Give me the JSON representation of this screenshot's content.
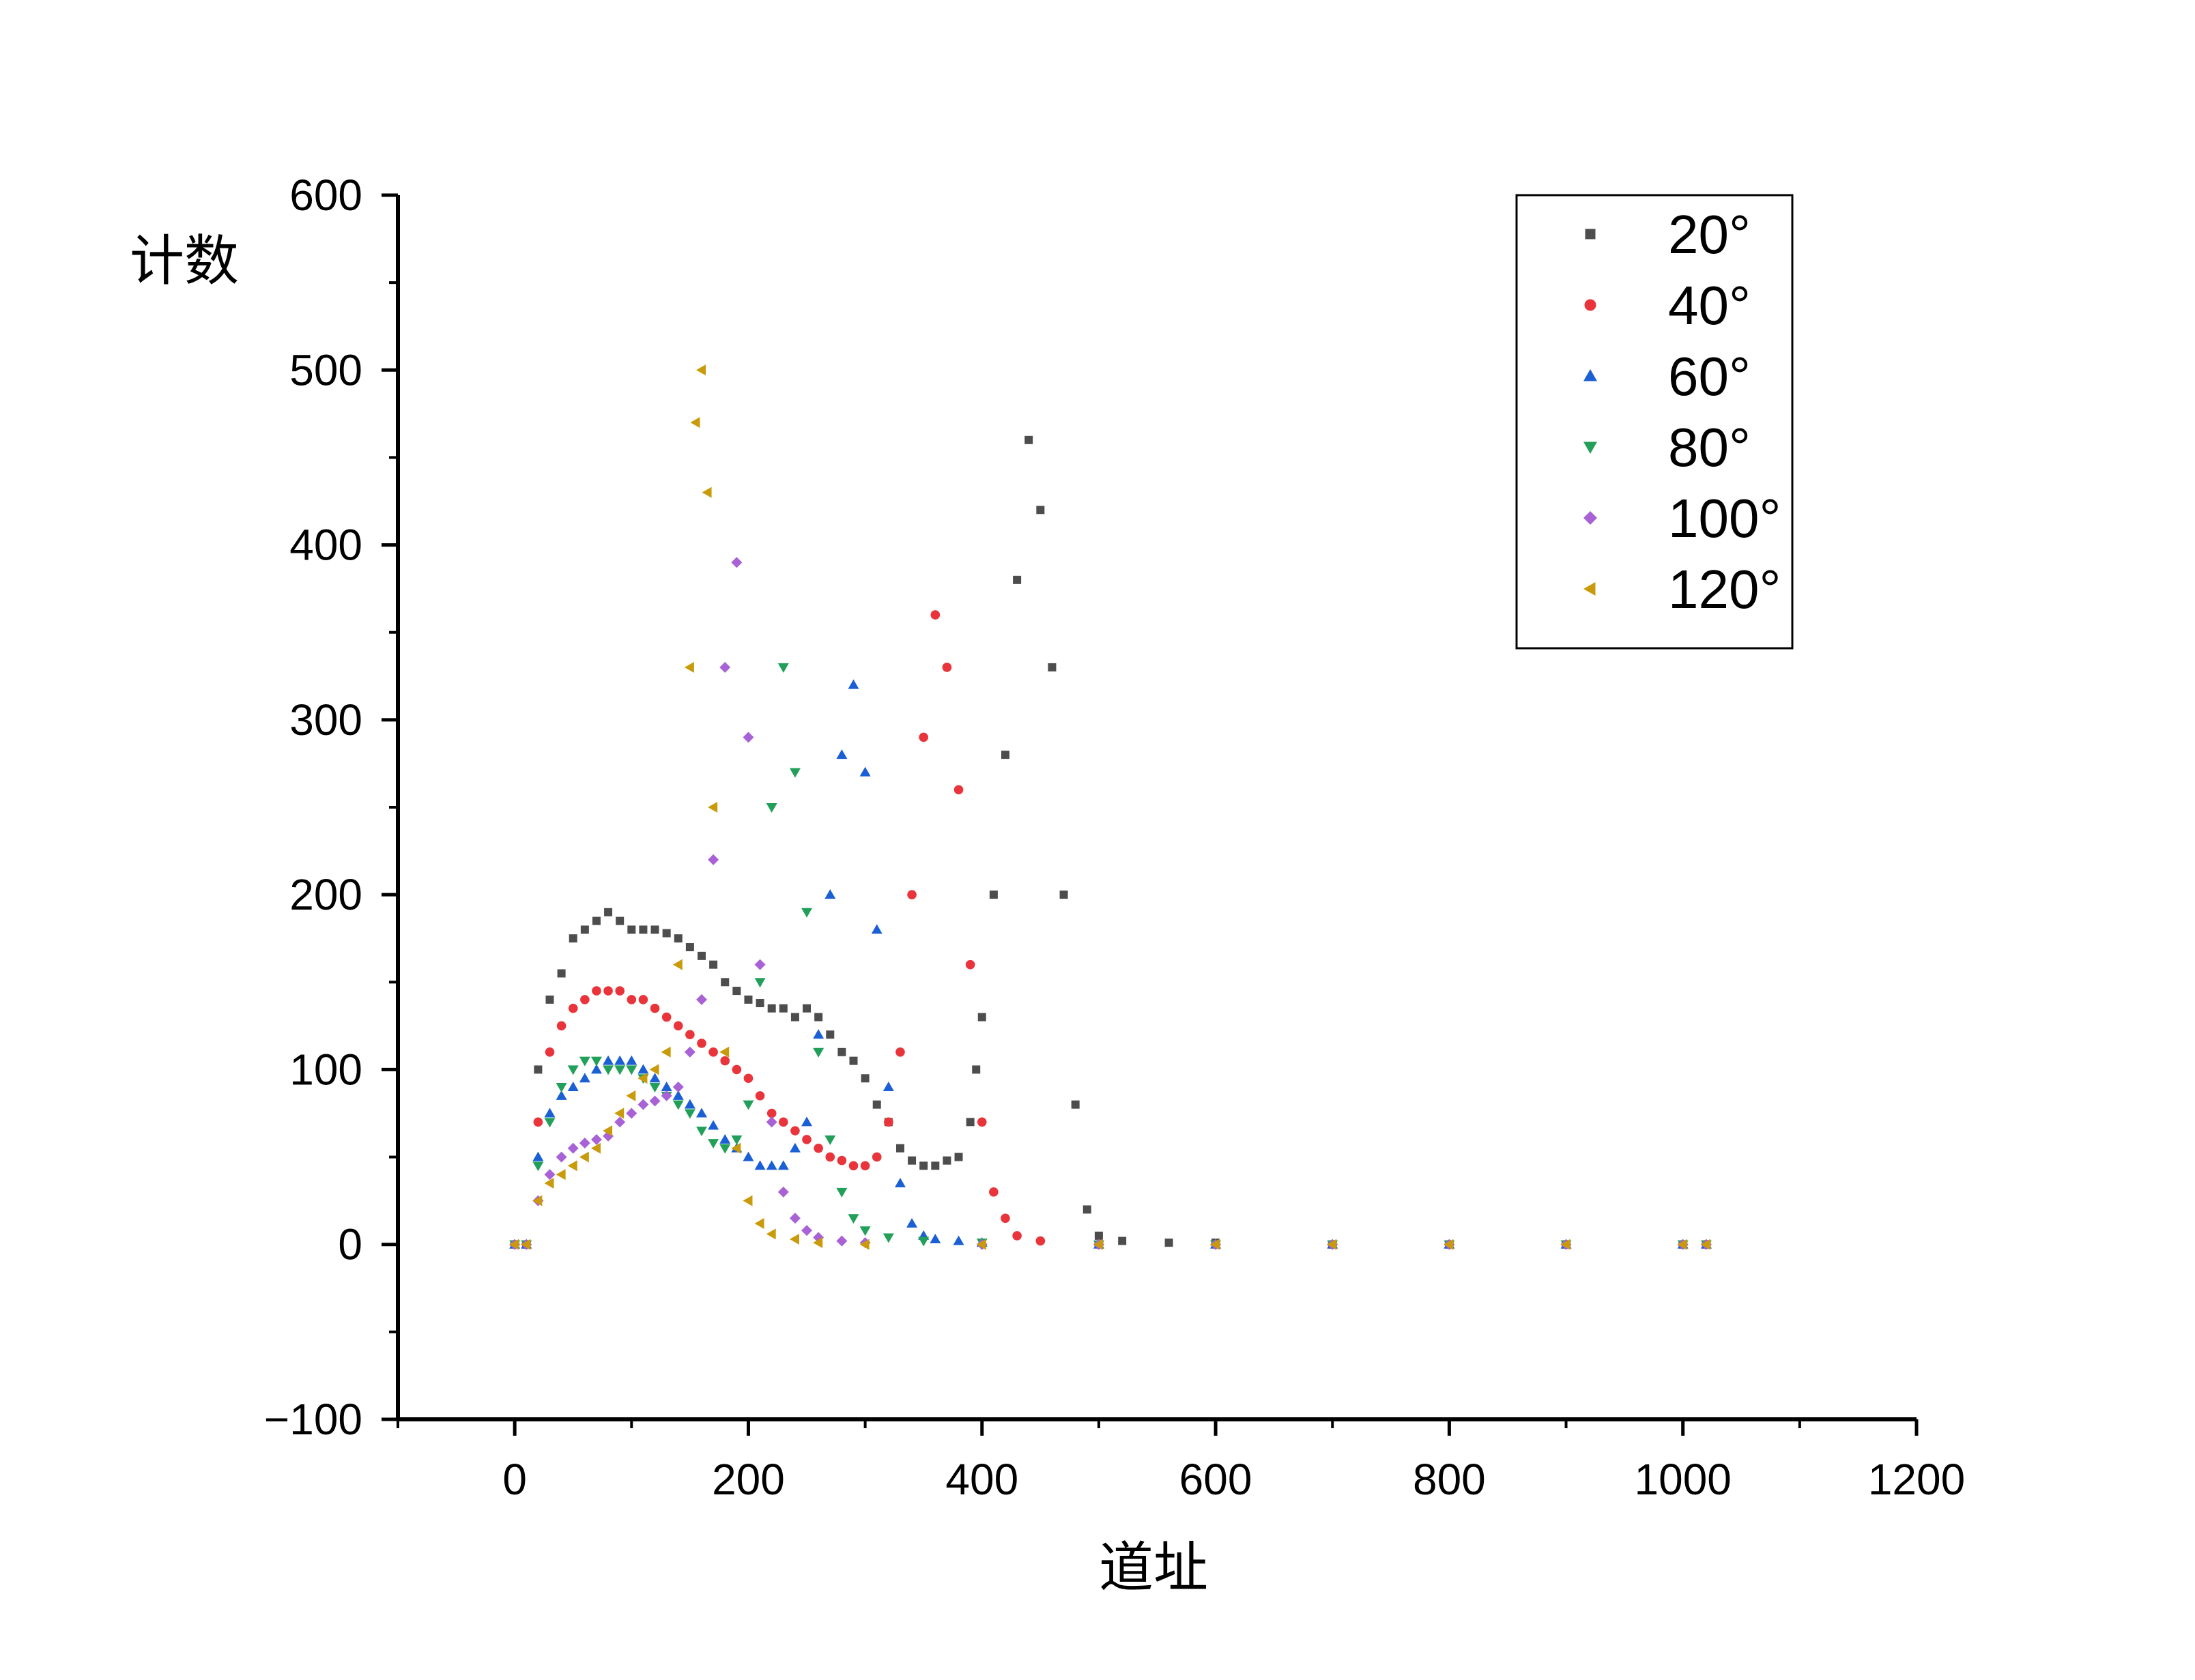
{
  "chart_data": {
    "type": "scatter",
    "xlabel": "道址",
    "ylabel": "计数",
    "xlim": [
      -100,
      1200
    ],
    "ylim": [
      -100,
      600
    ],
    "x_ticks": [
      0,
      200,
      400,
      600,
      800,
      1000,
      1200
    ],
    "x_tick_labels": [
      "0",
      "200",
      "400",
      "600",
      "800",
      "1000",
      "1200"
    ],
    "y_ticks": [
      -100,
      0,
      100,
      200,
      300,
      400,
      500,
      600
    ],
    "y_tick_labels": [
      "−100",
      "0",
      "100",
      "200",
      "300",
      "400",
      "500",
      "600"
    ],
    "grid": false,
    "legend_position": "top-right",
    "series": [
      {
        "name": "20°",
        "marker": "square",
        "color": "#4d4d4d",
        "points": [
          [
            0,
            0
          ],
          [
            10,
            0
          ],
          [
            20,
            100
          ],
          [
            30,
            140
          ],
          [
            40,
            155
          ],
          [
            50,
            175
          ],
          [
            60,
            180
          ],
          [
            70,
            185
          ],
          [
            80,
            190
          ],
          [
            90,
            185
          ],
          [
            100,
            180
          ],
          [
            110,
            180
          ],
          [
            120,
            180
          ],
          [
            130,
            178
          ],
          [
            140,
            175
          ],
          [
            150,
            170
          ],
          [
            160,
            165
          ],
          [
            170,
            160
          ],
          [
            180,
            150
          ],
          [
            190,
            145
          ],
          [
            200,
            140
          ],
          [
            210,
            138
          ],
          [
            220,
            135
          ],
          [
            230,
            135
          ],
          [
            240,
            130
          ],
          [
            250,
            135
          ],
          [
            260,
            130
          ],
          [
            270,
            120
          ],
          [
            280,
            110
          ],
          [
            290,
            105
          ],
          [
            300,
            95
          ],
          [
            310,
            80
          ],
          [
            320,
            70
          ],
          [
            330,
            55
          ],
          [
            340,
            48
          ],
          [
            350,
            45
          ],
          [
            360,
            45
          ],
          [
            370,
            48
          ],
          [
            380,
            50
          ],
          [
            390,
            70
          ],
          [
            395,
            100
          ],
          [
            400,
            130
          ],
          [
            410,
            200
          ],
          [
            420,
            280
          ],
          [
            430,
            380
          ],
          [
            440,
            460
          ],
          [
            450,
            420
          ],
          [
            460,
            330
          ],
          [
            470,
            200
          ],
          [
            480,
            80
          ],
          [
            490,
            20
          ],
          [
            500,
            5
          ],
          [
            520,
            2
          ],
          [
            560,
            1
          ],
          [
            600,
            1
          ],
          [
            700,
            0
          ],
          [
            800,
            0
          ],
          [
            900,
            0
          ],
          [
            1000,
            0
          ],
          [
            1020,
            0
          ]
        ]
      },
      {
        "name": "40°",
        "marker": "circle",
        "color": "#e8343a",
        "points": [
          [
            0,
            0
          ],
          [
            10,
            0
          ],
          [
            20,
            70
          ],
          [
            30,
            110
          ],
          [
            40,
            125
          ],
          [
            50,
            135
          ],
          [
            60,
            140
          ],
          [
            70,
            145
          ],
          [
            80,
            145
          ],
          [
            90,
            145
          ],
          [
            100,
            140
          ],
          [
            110,
            140
          ],
          [
            120,
            135
          ],
          [
            130,
            130
          ],
          [
            140,
            125
          ],
          [
            150,
            120
          ],
          [
            160,
            115
          ],
          [
            170,
            110
          ],
          [
            180,
            105
          ],
          [
            190,
            100
          ],
          [
            200,
            95
          ],
          [
            210,
            85
          ],
          [
            220,
            75
          ],
          [
            230,
            70
          ],
          [
            240,
            65
          ],
          [
            250,
            60
          ],
          [
            260,
            55
          ],
          [
            270,
            50
          ],
          [
            280,
            48
          ],
          [
            290,
            45
          ],
          [
            300,
            45
          ],
          [
            310,
            50
          ],
          [
            320,
            70
          ],
          [
            330,
            110
          ],
          [
            340,
            200
          ],
          [
            350,
            290
          ],
          [
            360,
            360
          ],
          [
            370,
            330
          ],
          [
            380,
            260
          ],
          [
            390,
            160
          ],
          [
            400,
            70
          ],
          [
            410,
            30
          ],
          [
            420,
            15
          ],
          [
            430,
            5
          ],
          [
            450,
            2
          ],
          [
            500,
            0
          ],
          [
            600,
            0
          ],
          [
            700,
            0
          ],
          [
            800,
            0
          ],
          [
            900,
            0
          ],
          [
            1000,
            0
          ],
          [
            1020,
            0
          ]
        ]
      },
      {
        "name": "60°",
        "marker": "triangle-up",
        "color": "#1a5fd4",
        "points": [
          [
            0,
            0
          ],
          [
            10,
            0
          ],
          [
            20,
            50
          ],
          [
            30,
            75
          ],
          [
            40,
            85
          ],
          [
            50,
            90
          ],
          [
            60,
            95
          ],
          [
            70,
            100
          ],
          [
            80,
            105
          ],
          [
            90,
            105
          ],
          [
            100,
            105
          ],
          [
            110,
            100
          ],
          [
            120,
            95
          ],
          [
            130,
            90
          ],
          [
            140,
            85
          ],
          [
            150,
            80
          ],
          [
            160,
            75
          ],
          [
            170,
            68
          ],
          [
            180,
            60
          ],
          [
            190,
            55
          ],
          [
            200,
            50
          ],
          [
            210,
            45
          ],
          [
            220,
            45
          ],
          [
            230,
            45
          ],
          [
            240,
            55
          ],
          [
            250,
            70
          ],
          [
            260,
            120
          ],
          [
            270,
            200
          ],
          [
            280,
            280
          ],
          [
            290,
            320
          ],
          [
            300,
            270
          ],
          [
            310,
            180
          ],
          [
            320,
            90
          ],
          [
            330,
            35
          ],
          [
            340,
            12
          ],
          [
            350,
            5
          ],
          [
            360,
            3
          ],
          [
            380,
            2
          ],
          [
            400,
            1
          ],
          [
            500,
            0
          ],
          [
            600,
            0
          ],
          [
            700,
            0
          ],
          [
            800,
            0
          ],
          [
            900,
            0
          ],
          [
            1000,
            0
          ],
          [
            1020,
            0
          ]
        ]
      },
      {
        "name": "80°",
        "marker": "triangle-down",
        "color": "#22a05a",
        "points": [
          [
            0,
            0
          ],
          [
            10,
            0
          ],
          [
            20,
            45
          ],
          [
            30,
            70
          ],
          [
            40,
            90
          ],
          [
            50,
            100
          ],
          [
            60,
            105
          ],
          [
            70,
            105
          ],
          [
            80,
            100
          ],
          [
            90,
            100
          ],
          [
            100,
            100
          ],
          [
            110,
            95
          ],
          [
            120,
            90
          ],
          [
            130,
            85
          ],
          [
            140,
            80
          ],
          [
            150,
            75
          ],
          [
            160,
            65
          ],
          [
            170,
            58
          ],
          [
            180,
            55
          ],
          [
            190,
            60
          ],
          [
            200,
            80
          ],
          [
            210,
            150
          ],
          [
            220,
            250
          ],
          [
            230,
            330
          ],
          [
            240,
            270
          ],
          [
            250,
            190
          ],
          [
            260,
            110
          ],
          [
            270,
            60
          ],
          [
            280,
            30
          ],
          [
            290,
            15
          ],
          [
            300,
            8
          ],
          [
            320,
            4
          ],
          [
            350,
            2
          ],
          [
            400,
            1
          ],
          [
            500,
            0
          ],
          [
            600,
            0
          ],
          [
            700,
            0
          ],
          [
            800,
            0
          ],
          [
            900,
            0
          ],
          [
            1000,
            0
          ],
          [
            1020,
            0
          ]
        ]
      },
      {
        "name": "100°",
        "marker": "diamond",
        "color": "#a862d6",
        "points": [
          [
            0,
            0
          ],
          [
            10,
            0
          ],
          [
            20,
            25
          ],
          [
            30,
            40
          ],
          [
            40,
            50
          ],
          [
            50,
            55
          ],
          [
            60,
            58
          ],
          [
            70,
            60
          ],
          [
            80,
            62
          ],
          [
            90,
            70
          ],
          [
            100,
            75
          ],
          [
            110,
            80
          ],
          [
            120,
            82
          ],
          [
            130,
            85
          ],
          [
            140,
            90
          ],
          [
            150,
            110
          ],
          [
            160,
            140
          ],
          [
            170,
            220
          ],
          [
            180,
            330
          ],
          [
            190,
            390
          ],
          [
            200,
            290
          ],
          [
            210,
            160
          ],
          [
            220,
            70
          ],
          [
            230,
            30
          ],
          [
            240,
            15
          ],
          [
            250,
            8
          ],
          [
            260,
            4
          ],
          [
            280,
            2
          ],
          [
            300,
            1
          ],
          [
            400,
            0
          ],
          [
            500,
            0
          ],
          [
            600,
            0
          ],
          [
            700,
            0
          ],
          [
            800,
            0
          ],
          [
            900,
            0
          ],
          [
            1000,
            0
          ],
          [
            1020,
            0
          ]
        ]
      },
      {
        "name": "120°",
        "marker": "triangle-left",
        "color": "#c99a0a",
        "points": [
          [
            0,
            0
          ],
          [
            10,
            0
          ],
          [
            20,
            25
          ],
          [
            30,
            35
          ],
          [
            40,
            40
          ],
          [
            50,
            45
          ],
          [
            60,
            50
          ],
          [
            70,
            55
          ],
          [
            80,
            65
          ],
          [
            90,
            75
          ],
          [
            100,
            85
          ],
          [
            110,
            95
          ],
          [
            120,
            100
          ],
          [
            130,
            110
          ],
          [
            140,
            160
          ],
          [
            150,
            330
          ],
          [
            155,
            470
          ],
          [
            160,
            500
          ],
          [
            165,
            430
          ],
          [
            170,
            250
          ],
          [
            180,
            110
          ],
          [
            190,
            55
          ],
          [
            200,
            25
          ],
          [
            210,
            12
          ],
          [
            220,
            6
          ],
          [
            240,
            3
          ],
          [
            260,
            1
          ],
          [
            300,
            0
          ],
          [
            400,
            0
          ],
          [
            500,
            0
          ],
          [
            600,
            0
          ],
          [
            700,
            0
          ],
          [
            800,
            0
          ],
          [
            900,
            0
          ],
          [
            1000,
            0
          ],
          [
            1020,
            0
          ]
        ]
      }
    ]
  }
}
